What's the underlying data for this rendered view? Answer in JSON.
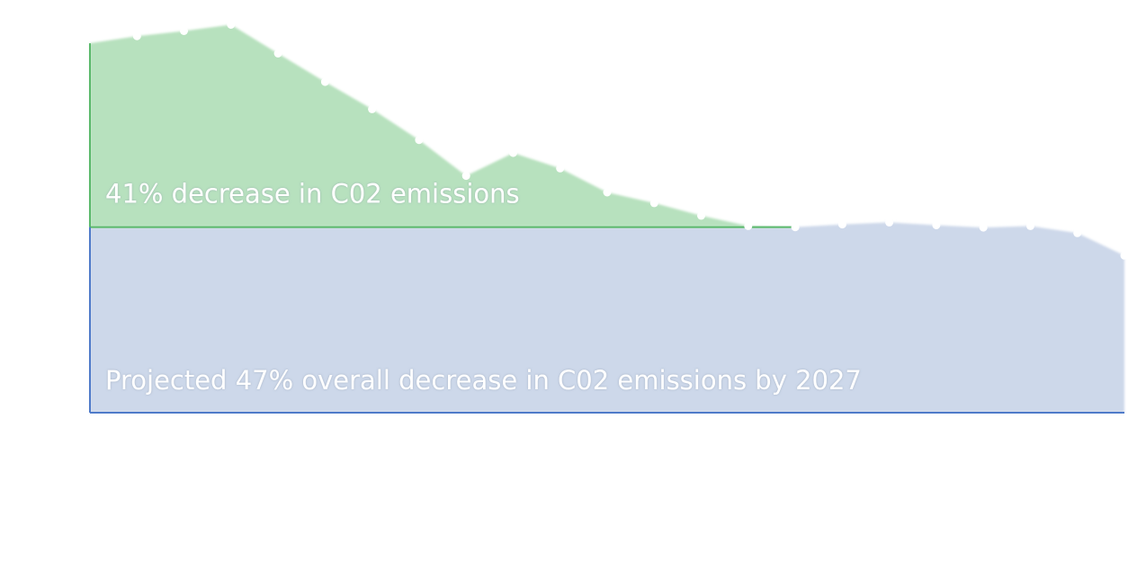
{
  "chart_data": {
    "type": "area",
    "title": "",
    "xlabel": "",
    "ylabel": "",
    "grid": false,
    "legend": "none",
    "ylim": [
      0,
      100
    ],
    "xlim": [
      0,
      22
    ],
    "series": [
      {
        "key": "achieved",
        "color": "#b7e1be",
        "line_color": "#59b86a",
        "x": [
          0,
          1,
          2,
          3,
          4,
          5,
          6,
          7,
          8,
          9,
          10,
          11,
          12,
          13,
          14,
          15
        ],
        "values": [
          93.6,
          95.4,
          96.7,
          98.3,
          91.0,
          83.8,
          76.9,
          69.1,
          60.0,
          65.8,
          61.9,
          55.8,
          53.1,
          49.9,
          47.3,
          47.0
        ]
      },
      {
        "key": "projected",
        "color": "#cdd8ea",
        "line_color": "#4f7bc9",
        "x": [
          15,
          16,
          17,
          18,
          19,
          20,
          21,
          22
        ],
        "values": [
          47.0,
          47.7,
          48.2,
          47.5,
          46.9,
          47.3,
          45.5,
          39.8
        ]
      }
    ],
    "baseline_level": 47.0,
    "annotations": [
      {
        "key": "achieved",
        "text": "41% decrease in C02 emissions"
      },
      {
        "key": "projected",
        "text": "Projected 47% overall decrease in C02 emissions by 2027"
      }
    ]
  }
}
